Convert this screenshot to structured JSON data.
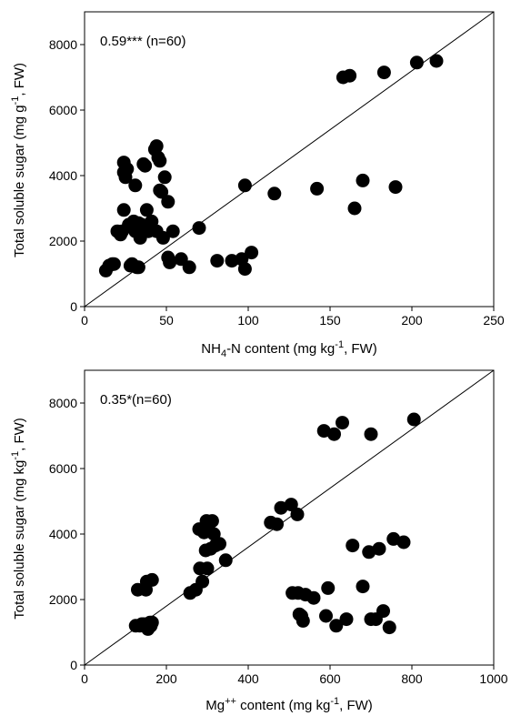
{
  "chart_data": [
    {
      "type": "scatter",
      "annotation_value": "0.59***",
      "annotation_n": "(n=60)",
      "xlabel": {
        "pre": "NH",
        "sub": "4",
        "mid": "-N content (mg kg",
        "sup": "-1",
        "post": ", FW)"
      },
      "ylabel": {
        "pre": "Total soluble sugar (mg g",
        "sup": "-1",
        "post": ", FW)"
      },
      "xlim": [
        0,
        250
      ],
      "ylim": [
        0,
        9000
      ],
      "xticks": [
        0,
        50,
        100,
        150,
        200,
        250
      ],
      "yticks": [
        0,
        2000,
        4000,
        6000,
        8000
      ],
      "xtick_labels": [
        "0",
        "50",
        "100",
        "150",
        "200",
        "250"
      ],
      "ytick_labels": [
        "0",
        "2000",
        "4000",
        "6000",
        "8000"
      ],
      "reference_line": [
        [
          0,
          0
        ],
        [
          250,
          9000
        ]
      ],
      "points": [
        [
          13,
          1100
        ],
        [
          15,
          1250
        ],
        [
          17,
          1300
        ],
        [
          18,
          1300
        ],
        [
          20,
          2300
        ],
        [
          22,
          2200
        ],
        [
          23,
          2300
        ],
        [
          24,
          2950
        ],
        [
          24,
          4400
        ],
        [
          24,
          4100
        ],
        [
          25,
          3950
        ],
        [
          26,
          4200
        ],
        [
          27,
          2500
        ],
        [
          28,
          1250
        ],
        [
          29,
          1300
        ],
        [
          30,
          2600
        ],
        [
          31,
          3700
        ],
        [
          31,
          2300
        ],
        [
          32,
          1200
        ],
        [
          33,
          1200
        ],
        [
          33,
          2550
        ],
        [
          34,
          2100
        ],
        [
          35,
          2500
        ],
        [
          36,
          4350
        ],
        [
          37,
          4300
        ],
        [
          38,
          2950
        ],
        [
          39,
          2300
        ],
        [
          41,
          2600
        ],
        [
          43,
          4800
        ],
        [
          44,
          4900
        ],
        [
          44,
          2300
        ],
        [
          45,
          4550
        ],
        [
          46,
          4450
        ],
        [
          46,
          3550
        ],
        [
          47,
          3500
        ],
        [
          48,
          2100
        ],
        [
          49,
          3950
        ],
        [
          51,
          3200
        ],
        [
          51,
          1500
        ],
        [
          52,
          1350
        ],
        [
          54,
          2300
        ],
        [
          59,
          1450
        ],
        [
          64,
          1200
        ],
        [
          70,
          2400
        ],
        [
          81,
          1400
        ],
        [
          90,
          1400
        ],
        [
          96,
          1450
        ],
        [
          98,
          1150
        ],
        [
          98,
          3700
        ],
        [
          102,
          1650
        ],
        [
          116,
          3450
        ],
        [
          142,
          3600
        ],
        [
          158,
          7000
        ],
        [
          162,
          7050
        ],
        [
          170,
          3850
        ],
        [
          183,
          7150
        ],
        [
          190,
          3650
        ],
        [
          203,
          7450
        ],
        [
          215,
          7500
        ],
        [
          165,
          3000
        ]
      ]
    },
    {
      "type": "scatter",
      "annotation_value": "0.35*",
      "annotation_n": "(n=60)",
      "xlabel": {
        "pre": "Mg",
        "sup": "++",
        "mid": " content (mg kg",
        "sup2": "-1",
        "post": ", FW)"
      },
      "ylabel": {
        "pre": "Total soluble sugar (mg kg",
        "sup": "-1",
        "post": ", FW)"
      },
      "xlim": [
        0,
        1000
      ],
      "ylim": [
        0,
        9000
      ],
      "xticks": [
        0,
        200,
        400,
        600,
        800,
        1000
      ],
      "yticks": [
        0,
        2000,
        4000,
        6000,
        8000
      ],
      "xtick_labels": [
        "0",
        "200",
        "400",
        "600",
        "800",
        "1000"
      ],
      "ytick_labels": [
        "0",
        "2000",
        "4000",
        "6000",
        "8000"
      ],
      "reference_line": [
        [
          0,
          0
        ],
        [
          1000,
          9000
        ]
      ],
      "points": [
        [
          125,
          1200
        ],
        [
          130,
          2300
        ],
        [
          135,
          1200
        ],
        [
          140,
          1250
        ],
        [
          145,
          1250
        ],
        [
          150,
          2300
        ],
        [
          152,
          2550
        ],
        [
          155,
          1100
        ],
        [
          158,
          1250
        ],
        [
          160,
          1300
        ],
        [
          162,
          1200
        ],
        [
          165,
          2600
        ],
        [
          165,
          1300
        ],
        [
          258,
          2200
        ],
        [
          272,
          2300
        ],
        [
          280,
          4150
        ],
        [
          282,
          2950
        ],
        [
          288,
          2550
        ],
        [
          292,
          4050
        ],
        [
          296,
          3500
        ],
        [
          298,
          4400
        ],
        [
          300,
          2950
        ],
        [
          302,
          4200
        ],
        [
          308,
          3550
        ],
        [
          312,
          4400
        ],
        [
          316,
          4000
        ],
        [
          320,
          3650
        ],
        [
          330,
          3700
        ],
        [
          345,
          3200
        ],
        [
          455,
          4350
        ],
        [
          470,
          4300
        ],
        [
          480,
          4800
        ],
        [
          505,
          4900
        ],
        [
          508,
          2200
        ],
        [
          520,
          4600
        ],
        [
          522,
          2200
        ],
        [
          525,
          1550
        ],
        [
          530,
          1500
        ],
        [
          534,
          1350
        ],
        [
          540,
          2150
        ],
        [
          560,
          2050
        ],
        [
          585,
          7150
        ],
        [
          590,
          1500
        ],
        [
          595,
          2350
        ],
        [
          610,
          7050
        ],
        [
          615,
          1200
        ],
        [
          630,
          7400
        ],
        [
          640,
          1400
        ],
        [
          655,
          3650
        ],
        [
          680,
          2400
        ],
        [
          695,
          3450
        ],
        [
          700,
          7050
        ],
        [
          700,
          1400
        ],
        [
          712,
          1400
        ],
        [
          720,
          3550
        ],
        [
          730,
          1650
        ],
        [
          745,
          1150
        ],
        [
          755,
          3850
        ],
        [
          780,
          3750
        ],
        [
          805,
          7500
        ]
      ]
    }
  ]
}
